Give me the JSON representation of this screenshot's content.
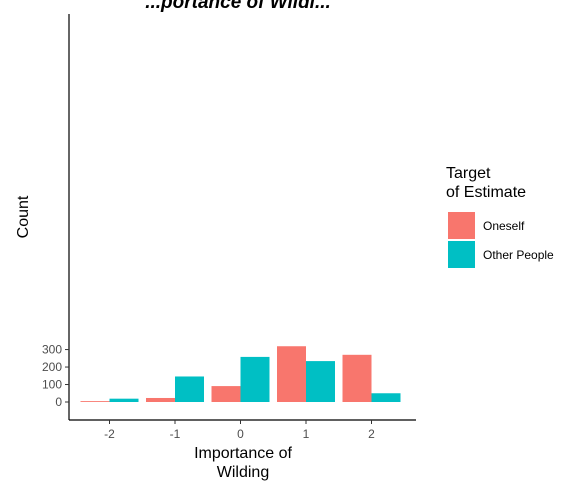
{
  "chart_data": {
    "type": "bar",
    "title": "...portance of Wildi...",
    "xlabel_line1": "Importance of",
    "xlabel_line2": "Wilding",
    "ylabel": "Count",
    "categories": [
      "-2",
      "-1",
      "0",
      "1",
      "2"
    ],
    "ylim": [
      0,
      340
    ],
    "yticks": [
      0,
      100,
      200,
      300
    ],
    "grid": false,
    "legend": {
      "title_line1": "Target",
      "title_line2": "of Estimate",
      "placement": "right"
    },
    "series": [
      {
        "name": "Oneself",
        "color": "#F8766D",
        "values": [
          5,
          23,
          91,
          319,
          270
        ]
      },
      {
        "name": "Other People",
        "color": "#00BFC4",
        "values": [
          19,
          146,
          258,
          234,
          50
        ]
      }
    ]
  }
}
